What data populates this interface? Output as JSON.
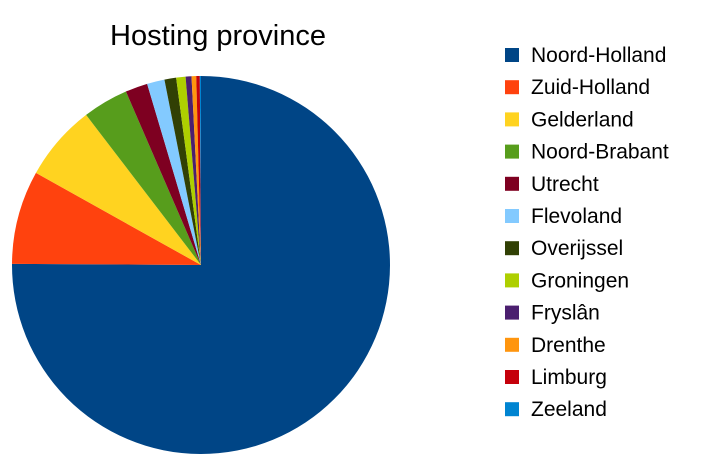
{
  "chart_data": {
    "type": "pie",
    "title": "Hosting province",
    "legend_position": "right",
    "start_angle": "12 o'clock",
    "direction": "clockwise",
    "slices": [
      {
        "label": "Noord-Holland",
        "value": 75.1,
        "color": "#004586"
      },
      {
        "label": "Zuid-Holland",
        "value": 8.0,
        "color": "#ff420e"
      },
      {
        "label": "Gelderland",
        "value": 6.5,
        "color": "#ffd320"
      },
      {
        "label": "Noord-Brabant",
        "value": 3.9,
        "color": "#579d1c"
      },
      {
        "label": "Utrecht",
        "value": 1.9,
        "color": "#7e0021"
      },
      {
        "label": "Flevoland",
        "value": 1.5,
        "color": "#83caff"
      },
      {
        "label": "Overijssel",
        "value": 1.0,
        "color": "#314004"
      },
      {
        "label": "Groningen",
        "value": 0.8,
        "color": "#aecf00"
      },
      {
        "label": "Fryslân",
        "value": 0.5,
        "color": "#4b1f6f"
      },
      {
        "label": "Drenthe",
        "value": 0.4,
        "color": "#ff950e"
      },
      {
        "label": "Limburg",
        "value": 0.3,
        "color": "#c5000b"
      },
      {
        "label": "Zeeland",
        "value": 0.1,
        "color": "#0084d1"
      }
    ]
  }
}
